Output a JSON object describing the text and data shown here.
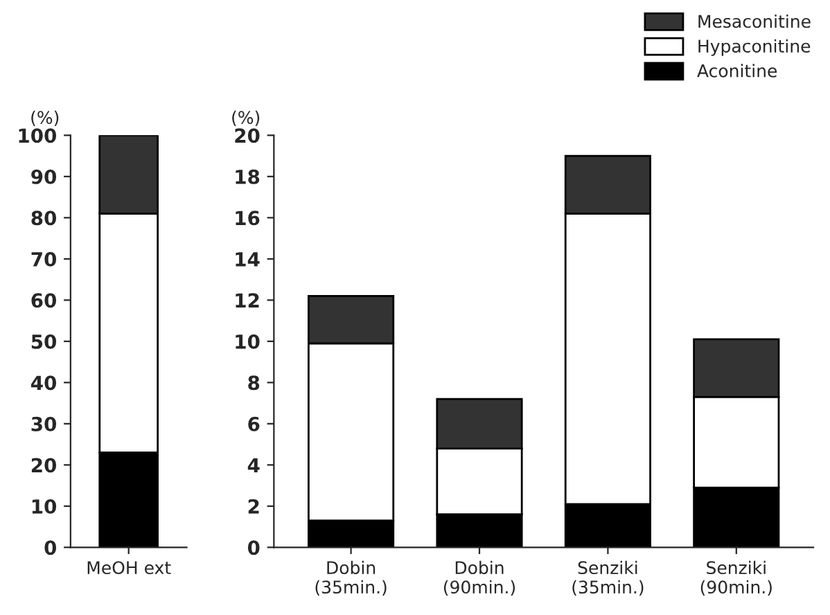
{
  "chart_data": [
    {
      "type": "bar",
      "stacked": true,
      "ylabel": "(%)",
      "categories": [
        "MeOH ext"
      ],
      "ylim": [
        0,
        100
      ],
      "yticks": [
        0,
        10,
        20,
        30,
        40,
        50,
        60,
        70,
        80,
        90,
        100
      ],
      "legend": false,
      "series": [
        {
          "color": "#000000",
          "values": [
            23
          ]
        },
        {
          "color": "#ffffff",
          "values": [
            58
          ]
        },
        {
          "color": "#333333",
          "values": [
            19
          ]
        }
      ]
    },
    {
      "type": "bar",
      "stacked": true,
      "ylabel": "(%)",
      "categories": [
        "Dobin\n(35min.)",
        "Dobin\n(90min.)",
        "Senziki\n(35min.)",
        "Senziki\n(90min.)"
      ],
      "ylim": [
        0,
        20
      ],
      "yticks": [
        0,
        2,
        4,
        6,
        8,
        10,
        12,
        14,
        16,
        18,
        20
      ],
      "legend": "top right",
      "series": [
        {
          "name": "Aconitine",
          "color": "#000000",
          "values": [
            1.3,
            1.6,
            2.1,
            2.9
          ]
        },
        {
          "name": "Hypaconitine",
          "color": "#ffffff",
          "values": [
            8.6,
            3.2,
            14.1,
            4.4
          ]
        },
        {
          "name": "Mesaconitine",
          "color": "#333333",
          "values": [
            2.3,
            2.4,
            2.8,
            2.8
          ]
        }
      ]
    }
  ]
}
